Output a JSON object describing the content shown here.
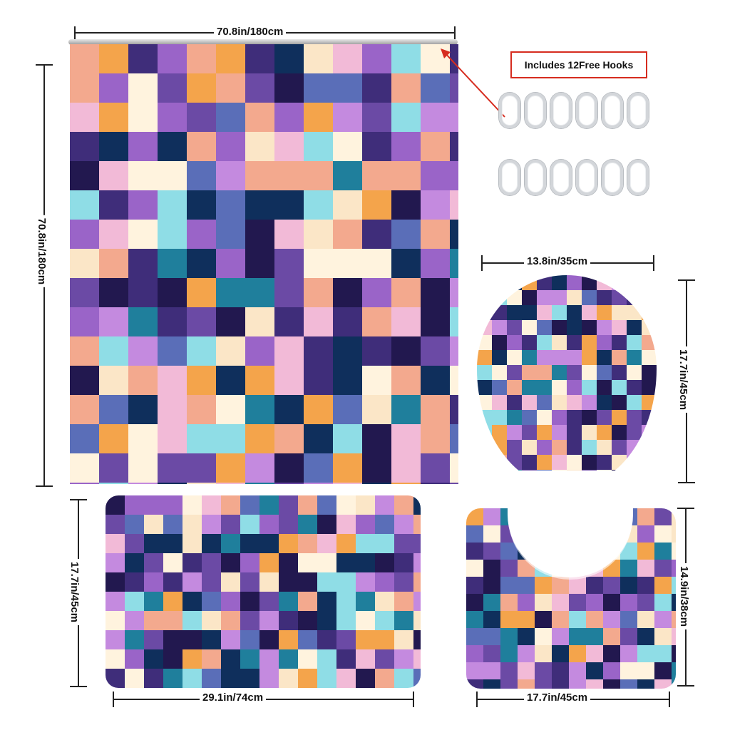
{
  "hooks_badge": "Includes 12Free Hooks",
  "dimensions": {
    "curtain_width": "70.8in/180cm",
    "curtain_height": "70.8in/180cm",
    "lid_width": "13.8in/35cm",
    "lid_height": "17.7in/45cm",
    "bathmat_height": "17.7in/45cm",
    "bathmat_width": "29.1in/74cm",
    "contour_height": "14.9in/38cm",
    "contour_width": "17.7in/45cm"
  },
  "palette": [
    "#22184f",
    "#3f2d7a",
    "#6b4aa5",
    "#9a64c8",
    "#c48adf",
    "#f2bad7",
    "#f3a98e",
    "#f4a44b",
    "#fbe6c7",
    "#fff3de",
    "#8fdde6",
    "#1f7f9c",
    "#0f2f5c",
    "#5a6eb8"
  ],
  "icons": {
    "hook": "shower-hook-ring-icon",
    "arrow": "pointer-arrow-icon"
  }
}
